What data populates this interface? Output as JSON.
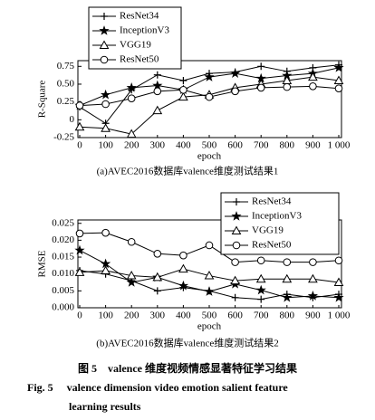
{
  "chart_data": [
    {
      "type": "line",
      "subtitle": "(a)AVEC2016数据库valence维度测试结果1",
      "xlabel": "epoch",
      "ylabel": "R-Square",
      "x": [
        0,
        100,
        200,
        300,
        400,
        500,
        600,
        700,
        800,
        900,
        1000
      ],
      "xlim": [
        0,
        1000
      ],
      "xticks": [
        0,
        100,
        200,
        300,
        400,
        500,
        600,
        700,
        800,
        900,
        {
          "value": 1000,
          "label": "1 000"
        }
      ],
      "ylim": [
        -0.25,
        0.83
      ],
      "yticks": [
        -0.25,
        0,
        0.25,
        {
          "value": 0.5,
          "label": "0.50"
        },
        0.75
      ],
      "legend": "upper left",
      "series": [
        {
          "name": "ResNet34",
          "color": "#000000",
          "marker": "plus",
          "values": [
            0.18,
            -0.05,
            0.42,
            0.63,
            0.55,
            0.65,
            0.67,
            0.75,
            0.68,
            0.73,
            0.77
          ]
        },
        {
          "name": "InceptionV3",
          "color": "#000000",
          "marker": "star",
          "values": [
            0.2,
            0.35,
            0.45,
            0.48,
            0.42,
            0.6,
            0.65,
            0.58,
            0.62,
            0.65,
            0.73
          ]
        },
        {
          "name": "VGG19",
          "color": "#000000",
          "marker": "triangle",
          "values": [
            -0.1,
            -0.12,
            -0.2,
            0.13,
            0.32,
            0.35,
            0.45,
            0.5,
            0.55,
            0.6,
            0.55
          ]
        },
        {
          "name": "ResNet50",
          "color": "#000000",
          "marker": "circle",
          "values": [
            0.2,
            0.22,
            0.3,
            0.4,
            0.42,
            0.32,
            0.4,
            0.45,
            0.46,
            0.47,
            0.44
          ]
        }
      ]
    },
    {
      "type": "line",
      "subtitle": "(b)AVEC2016数据库valence维度测试结果2",
      "xlabel": "epoch",
      "ylabel": "RMSE",
      "x": [
        0,
        100,
        200,
        300,
        400,
        500,
        600,
        700,
        800,
        900,
        1000
      ],
      "xlim": [
        0,
        1000
      ],
      "xticks": [
        0,
        100,
        200,
        300,
        400,
        500,
        600,
        700,
        800,
        900,
        {
          "value": 1000,
          "label": "1 000"
        }
      ],
      "ylim": [
        0,
        0.026
      ],
      "yticks": [
        {
          "value": 0,
          "label": "0.000"
        },
        {
          "value": 0.005,
          "label": "0.005"
        },
        {
          "value": 0.01,
          "label": "0.010"
        },
        {
          "value": 0.015,
          "label": "0.015"
        },
        {
          "value": 0.02,
          "label": "0.020"
        },
        {
          "value": 0.025,
          "label": "0.025"
        }
      ],
      "legend": "upper right",
      "series": [
        {
          "name": "ResNet34",
          "color": "#000000",
          "marker": "plus",
          "values": [
            0.011,
            0.01,
            0.008,
            0.005,
            0.006,
            0.005,
            0.003,
            0.0025,
            0.004,
            0.003,
            0.004
          ]
        },
        {
          "name": "InceptionV3",
          "color": "#000000",
          "marker": "star",
          "values": [
            0.017,
            0.013,
            0.0075,
            0.009,
            0.0065,
            0.0048,
            0.007,
            0.0052,
            0.003,
            0.0035,
            0.003
          ]
        },
        {
          "name": "VGG19",
          "color": "#000000",
          "marker": "triangle",
          "values": [
            0.0105,
            0.011,
            0.0095,
            0.009,
            0.0115,
            0.0095,
            0.008,
            0.0085,
            0.0085,
            0.0085,
            0.0075
          ]
        },
        {
          "name": "ResNet50",
          "color": "#000000",
          "marker": "circle",
          "values": [
            0.022,
            0.0222,
            0.0195,
            0.016,
            0.0155,
            0.0185,
            0.0135,
            0.014,
            0.0135,
            0.0135,
            0.014
          ]
        }
      ]
    }
  ],
  "caption": {
    "zh": "图 5　valence 维度视频情感显著特征学习结果",
    "en": [
      "Fig. 5　 valence dimension video emotion salient feature",
      "learning results"
    ]
  }
}
